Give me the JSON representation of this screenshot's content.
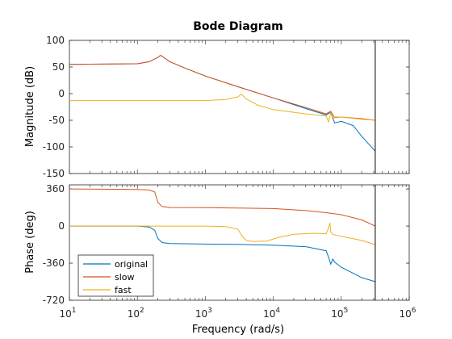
{
  "chart_data": {
    "type": "line",
    "title": "Bode Diagram",
    "xlabel": "Frequency  (rad/s)",
    "x_scale": "log",
    "x_range": [
      10,
      1000000
    ],
    "x_ticks": [
      {
        "value": 10,
        "base": "10",
        "exp": "1"
      },
      {
        "value": 100,
        "base": "10",
        "exp": "2"
      },
      {
        "value": 1000,
        "base": "10",
        "exp": "3"
      },
      {
        "value": 10000,
        "base": "10",
        "exp": "4"
      },
      {
        "value": 100000,
        "base": "10",
        "exp": "5"
      },
      {
        "value": 1000000,
        "base": "10",
        "exp": "6"
      }
    ],
    "vertical_line_x": 316228,
    "legend": {
      "location": "bottom-left",
      "entries": [
        "original",
        "slow",
        "fast"
      ]
    },
    "colors": {
      "original": "#0072bd",
      "slow": "#d95319",
      "fast": "#edb120",
      "marker_line": "#000000"
    },
    "panels": [
      {
        "name": "magnitude",
        "ylabel": "Magnitude (dB)",
        "ylim": [
          -150,
          100
        ],
        "yticks": [
          "100",
          "50",
          "0",
          "-50",
          "-100",
          "-150"
        ],
        "ytick_values": [
          100,
          50,
          0,
          -50,
          -100,
          -150
        ],
        "series": [
          {
            "name": "original",
            "x": [
              10,
              100,
              150,
              200,
              220,
              300,
              500,
              1000,
              3000,
              10000,
              30000,
              60000,
              70000,
              80000,
              100000,
              150000,
              200000,
              316228
            ],
            "y": [
              55,
              56,
              60,
              68,
              72,
              60,
              48,
              33,
              13,
              -8,
              -28,
              -40,
              -35,
              -55,
              -52,
              -60,
              -80,
              -108
            ]
          },
          {
            "name": "slow",
            "x": [
              10,
              100,
              150,
              200,
              220,
              300,
              500,
              1000,
              3000,
              10000,
              30000,
              60000,
              70000,
              80000,
              100000,
              200000,
              316228
            ],
            "y": [
              55,
              56,
              60,
              68,
              72,
              60,
              48,
              33,
              13,
              -8,
              -26,
              -38,
              -33,
              -45,
              -44,
              -47,
              -50
            ]
          },
          {
            "name": "fast",
            "x": [
              10,
              100,
              1000,
              2000,
              3000,
              3400,
              4000,
              6000,
              10000,
              30000,
              60000,
              65000,
              70000,
              75000,
              80000,
              100000,
              200000,
              316228
            ],
            "y": [
              -13,
              -13,
              -13,
              -11,
              -6,
              -1,
              -10,
              -22,
              -30,
              -38,
              -42,
              -53,
              -36,
              -48,
              -44,
              -44,
              -48,
              -50
            ]
          }
        ]
      },
      {
        "name": "phase",
        "ylabel": "Phase (deg)",
        "ylim": [
          -720,
          400
        ],
        "yticks": [
          "360",
          "0",
          "-360",
          "-720"
        ],
        "ytick_values": [
          360,
          0,
          -360,
          -720
        ],
        "series": [
          {
            "name": "original",
            "x": [
              10,
              100,
              150,
              180,
              200,
              230,
              300,
              1000,
              3000,
              10000,
              30000,
              60000,
              65000,
              70000,
              75000,
              80000,
              100000,
              200000,
              316228
            ],
            "y": [
              0,
              0,
              -10,
              -40,
              -120,
              -160,
              -170,
              -175,
              -178,
              -185,
              -200,
              -240,
              -300,
              -370,
              -320,
              -350,
              -400,
              -500,
              -540
            ]
          },
          {
            "name": "slow",
            "x": [
              10,
              100,
              150,
              180,
              200,
              230,
              300,
              1000,
              3000,
              10000,
              30000,
              60000,
              100000,
              200000,
              316228
            ],
            "y": [
              360,
              355,
              350,
              330,
              230,
              190,
              180,
              178,
              175,
              170,
              150,
              130,
              110,
              60,
              0
            ]
          },
          {
            "name": "fast",
            "x": [
              10,
              100,
              1000,
              2000,
              3000,
              3500,
              4000,
              5000,
              8000,
              12000,
              20000,
              40000,
              60000,
              65000,
              68000,
              70000,
              75000,
              100000,
              200000,
              316228
            ],
            "y": [
              0,
              0,
              0,
              -5,
              -30,
              -100,
              -140,
              -150,
              -145,
              -110,
              -80,
              -70,
              -75,
              -20,
              30,
              -60,
              -80,
              -100,
              -140,
              -180
            ]
          }
        ]
      }
    ]
  }
}
